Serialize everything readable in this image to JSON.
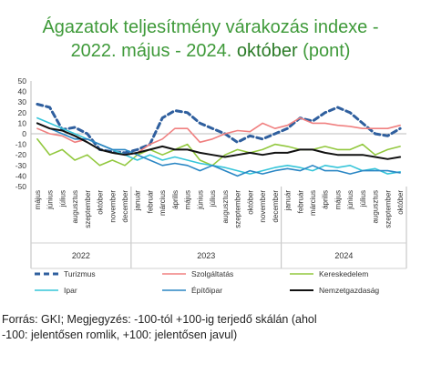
{
  "title": {
    "line1": "Ágazatok teljesítmény várakozás indexe -",
    "line2_prefix": "2022. május - 2024. ",
    "line2_highlight": "október",
    "line2_suffix": " (pont)"
  },
  "footnote": {
    "line1": "Forrás: GKI; Megjegyzés: -100-tól +100-ig terjedő skálán (ahol",
    "line2": "-100: jelentősen romlik, +100: jelentősen javul)"
  },
  "chart_data": {
    "type": "line",
    "ylim": [
      -50,
      50
    ],
    "yticks": [
      50,
      40,
      30,
      20,
      10,
      0,
      -10,
      -20,
      -30,
      -40,
      -50
    ],
    "grid": false,
    "legend_position": "bottom",
    "categories": [
      "május",
      "június",
      "július",
      "augusztus",
      "szeptember",
      "október",
      "november",
      "december",
      "január",
      "február",
      "március",
      "április",
      "május",
      "június",
      "július",
      "augusztus",
      "szeptember",
      "október",
      "november",
      "december",
      "január",
      "február",
      "március",
      "április",
      "május",
      "június",
      "július",
      "augusztus",
      "szeptember",
      "október"
    ],
    "year_groups": [
      {
        "label": "2022",
        "start": 0,
        "end": 7
      },
      {
        "label": "2023",
        "start": 8,
        "end": 19
      },
      {
        "label": "2024",
        "start": 20,
        "end": 29
      }
    ],
    "series": [
      {
        "name": "Turizmus",
        "color": "#2f5f9e",
        "dash": "6,4",
        "width": 3,
        "values": [
          28,
          25,
          4,
          6,
          0,
          -15,
          -17,
          -18,
          -15,
          -10,
          15,
          22,
          20,
          10,
          5,
          0,
          -8,
          -2,
          -5,
          0,
          5,
          15,
          12,
          20,
          25,
          20,
          10,
          0,
          -2,
          5
        ]
      },
      {
        "name": "Szolgáltatás",
        "color": "#f08080",
        "dash": "",
        "width": 1.6,
        "values": [
          5,
          0,
          -2,
          -8,
          -5,
          -10,
          -15,
          -20,
          -18,
          -10,
          -5,
          5,
          5,
          -8,
          -5,
          0,
          3,
          2,
          10,
          5,
          8,
          15,
          10,
          10,
          8,
          7,
          5,
          5,
          5,
          8
        ]
      },
      {
        "name": "Kereskedelem",
        "color": "#92c83e",
        "dash": "",
        "width": 1.6,
        "values": [
          -5,
          -20,
          -15,
          -25,
          -20,
          -30,
          -25,
          -30,
          -20,
          -15,
          -20,
          -15,
          -10,
          -25,
          -30,
          -20,
          -15,
          -18,
          -15,
          -10,
          -12,
          -15,
          -15,
          -12,
          -15,
          -15,
          -10,
          -20,
          -15,
          -12
        ]
      },
      {
        "name": "Ipar",
        "color": "#35c5d9",
        "dash": "",
        "width": 1.6,
        "values": [
          15,
          10,
          5,
          0,
          -5,
          -10,
          -15,
          -20,
          -25,
          -20,
          -25,
          -22,
          -25,
          -28,
          -30,
          -32,
          -35,
          -38,
          -35,
          -32,
          -30,
          -32,
          -35,
          -30,
          -32,
          -30,
          -35,
          -33,
          -38,
          -36
        ]
      },
      {
        "name": "Építőipar",
        "color": "#2a86c4",
        "dash": "",
        "width": 1.6,
        "values": [
          10,
          5,
          0,
          -5,
          -5,
          -10,
          -15,
          -15,
          -20,
          -25,
          -30,
          -28,
          -30,
          -35,
          -30,
          -35,
          -40,
          -35,
          -38,
          -35,
          -33,
          -35,
          -30,
          -35,
          -35,
          -38,
          -35,
          -35,
          -35,
          -37
        ]
      },
      {
        "name": "Nemzetgazdaság",
        "color": "#111111",
        "dash": "",
        "width": 2,
        "values": [
          10,
          5,
          3,
          -2,
          -8,
          -15,
          -18,
          -20,
          -18,
          -15,
          -12,
          -15,
          -15,
          -18,
          -20,
          -22,
          -20,
          -18,
          -20,
          -18,
          -18,
          -15,
          -15,
          -18,
          -20,
          -20,
          -20,
          -22,
          -24,
          -22
        ]
      }
    ]
  }
}
